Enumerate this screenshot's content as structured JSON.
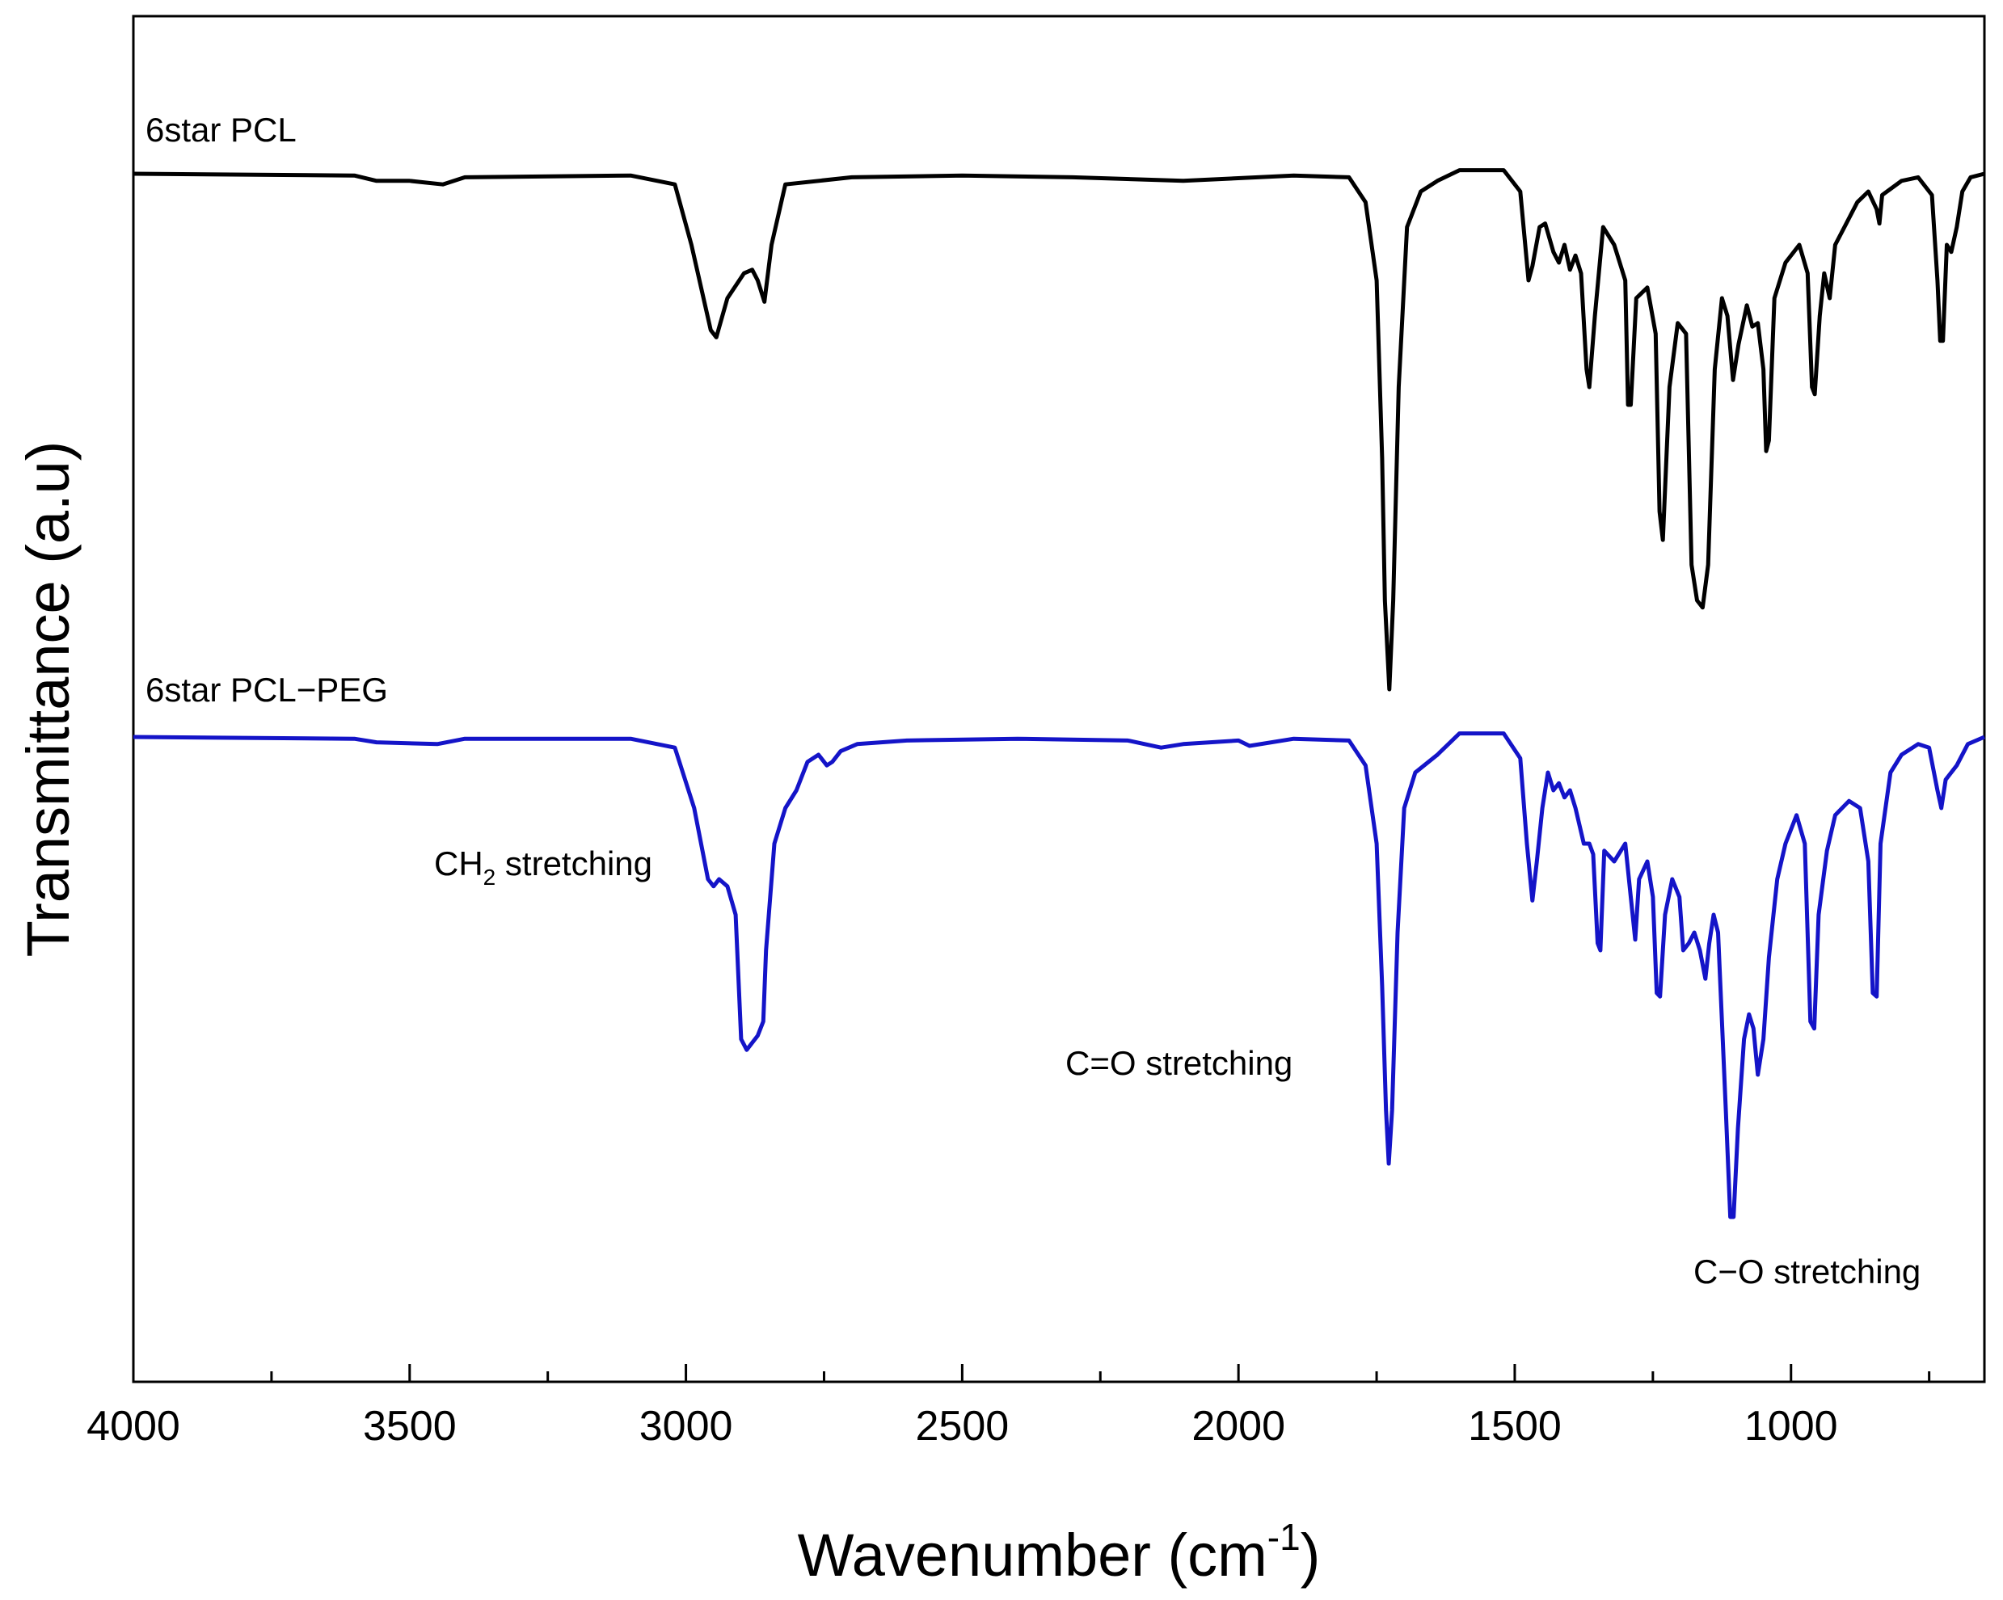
{
  "chart_data": {
    "type": "line",
    "xlabel": "Wavenumber (cm",
    "xlabel_sup": "-1",
    "xlabel_close": ")",
    "ylabel": "Transmittance (a.u)",
    "xlim": [
      4000,
      650
    ],
    "x_reversed": true,
    "x_ticks": [
      4000,
      3500,
      3000,
      2500,
      2000,
      1500,
      1000
    ],
    "y_tick_labels": "none",
    "grid": false,
    "colors": {
      "6star PCL": "#000000",
      "6star PCL-PEG": "#1414c8"
    },
    "series": [
      {
        "name": "6star PCL",
        "color": "#000000",
        "points": [
          [
            4000,
            0.0
          ],
          [
            3600,
            -0.005
          ],
          [
            3560,
            -0.02
          ],
          [
            3500,
            -0.02
          ],
          [
            3440,
            -0.03
          ],
          [
            3400,
            -0.01
          ],
          [
            3100,
            -0.005
          ],
          [
            3020,
            -0.03
          ],
          [
            2990,
            -0.2
          ],
          [
            2955,
            -0.44
          ],
          [
            2945,
            -0.46
          ],
          [
            2925,
            -0.35
          ],
          [
            2895,
            -0.28
          ],
          [
            2880,
            -0.27
          ],
          [
            2870,
            -0.3
          ],
          [
            2858,
            -0.36
          ],
          [
            2845,
            -0.2
          ],
          [
            2820,
            -0.03
          ],
          [
            2700,
            -0.01
          ],
          [
            2500,
            -0.005
          ],
          [
            2300,
            -0.01
          ],
          [
            2100,
            -0.02
          ],
          [
            1900,
            -0.005
          ],
          [
            1800,
            -0.01
          ],
          [
            1770,
            -0.08
          ],
          [
            1750,
            -0.3
          ],
          [
            1740,
            -0.8
          ],
          [
            1735,
            -1.2
          ],
          [
            1727,
            -1.45
          ],
          [
            1720,
            -1.2
          ],
          [
            1710,
            -0.6
          ],
          [
            1695,
            -0.15
          ],
          [
            1670,
            -0.05
          ],
          [
            1640,
            -0.02
          ],
          [
            1600,
            0.01
          ],
          [
            1520,
            0.01
          ],
          [
            1490,
            -0.05
          ],
          [
            1475,
            -0.3
          ],
          [
            1468,
            -0.26
          ],
          [
            1455,
            -0.15
          ],
          [
            1445,
            -0.14
          ],
          [
            1430,
            -0.22
          ],
          [
            1420,
            -0.25
          ],
          [
            1410,
            -0.2
          ],
          [
            1400,
            -0.27
          ],
          [
            1390,
            -0.23
          ],
          [
            1380,
            -0.28
          ],
          [
            1370,
            -0.55
          ],
          [
            1365,
            -0.6
          ],
          [
            1355,
            -0.4
          ],
          [
            1340,
            -0.15
          ],
          [
            1320,
            -0.2
          ],
          [
            1300,
            -0.3
          ],
          [
            1295,
            -0.65
          ],
          [
            1290,
            -0.65
          ],
          [
            1280,
            -0.35
          ],
          [
            1260,
            -0.32
          ],
          [
            1245,
            -0.45
          ],
          [
            1238,
            -0.95
          ],
          [
            1232,
            -1.03
          ],
          [
            1220,
            -0.6
          ],
          [
            1205,
            -0.42
          ],
          [
            1190,
            -0.45
          ],
          [
            1180,
            -1.1
          ],
          [
            1170,
            -1.2
          ],
          [
            1160,
            -1.22
          ],
          [
            1150,
            -1.1
          ],
          [
            1138,
            -0.55
          ],
          [
            1125,
            -0.35
          ],
          [
            1115,
            -0.4
          ],
          [
            1105,
            -0.58
          ],
          [
            1095,
            -0.48
          ],
          [
            1080,
            -0.37
          ],
          [
            1070,
            -0.43
          ],
          [
            1060,
            -0.42
          ],
          [
            1050,
            -0.55
          ],
          [
            1045,
            -0.78
          ],
          [
            1040,
            -0.75
          ],
          [
            1030,
            -0.35
          ],
          [
            1010,
            -0.25
          ],
          [
            985,
            -0.2
          ],
          [
            970,
            -0.28
          ],
          [
            962,
            -0.6
          ],
          [
            957,
            -0.62
          ],
          [
            948,
            -0.4
          ],
          [
            940,
            -0.28
          ],
          [
            930,
            -0.35
          ],
          [
            920,
            -0.2
          ],
          [
            880,
            -0.08
          ],
          [
            860,
            -0.05
          ],
          [
            845,
            -0.1
          ],
          [
            840,
            -0.14
          ],
          [
            835,
            -0.06
          ],
          [
            800,
            -0.02
          ],
          [
            770,
            -0.01
          ],
          [
            745,
            -0.06
          ],
          [
            735,
            -0.3
          ],
          [
            730,
            -0.47
          ],
          [
            725,
            -0.47
          ],
          [
            718,
            -0.2
          ],
          [
            710,
            -0.22
          ],
          [
            700,
            -0.15
          ],
          [
            690,
            -0.05
          ],
          [
            675,
            -0.01
          ],
          [
            650,
            0.0
          ]
        ]
      },
      {
        "name": "6star PCL-PEG",
        "color": "#1414c8",
        "points": [
          [
            4000,
            0.0
          ],
          [
            3600,
            -0.005
          ],
          [
            3560,
            -0.015
          ],
          [
            3450,
            -0.02
          ],
          [
            3400,
            -0.005
          ],
          [
            3100,
            -0.005
          ],
          [
            3020,
            -0.03
          ],
          [
            2985,
            -0.2
          ],
          [
            2960,
            -0.4
          ],
          [
            2950,
            -0.42
          ],
          [
            2940,
            -0.4
          ],
          [
            2925,
            -0.42
          ],
          [
            2910,
            -0.5
          ],
          [
            2900,
            -0.85
          ],
          [
            2890,
            -0.88
          ],
          [
            2880,
            -0.86
          ],
          [
            2870,
            -0.84
          ],
          [
            2860,
            -0.8
          ],
          [
            2855,
            -0.6
          ],
          [
            2840,
            -0.3
          ],
          [
            2820,
            -0.2
          ],
          [
            2800,
            -0.15
          ],
          [
            2780,
            -0.07
          ],
          [
            2760,
            -0.05
          ],
          [
            2745,
            -0.08
          ],
          [
            2735,
            -0.07
          ],
          [
            2720,
            -0.04
          ],
          [
            2690,
            -0.02
          ],
          [
            2600,
            -0.01
          ],
          [
            2400,
            -0.005
          ],
          [
            2200,
            -0.01
          ],
          [
            2140,
            -0.03
          ],
          [
            2100,
            -0.02
          ],
          [
            2000,
            -0.01
          ],
          [
            1980,
            -0.025
          ],
          [
            1900,
            -0.005
          ],
          [
            1800,
            -0.01
          ],
          [
            1770,
            -0.08
          ],
          [
            1750,
            -0.3
          ],
          [
            1740,
            -0.7
          ],
          [
            1733,
            -1.05
          ],
          [
            1728,
            -1.2
          ],
          [
            1722,
            -1.05
          ],
          [
            1712,
            -0.55
          ],
          [
            1700,
            -0.2
          ],
          [
            1680,
            -0.1
          ],
          [
            1640,
            -0.05
          ],
          [
            1600,
            0.01
          ],
          [
            1520,
            0.01
          ],
          [
            1490,
            -0.06
          ],
          [
            1478,
            -0.3
          ],
          [
            1468,
            -0.46
          ],
          [
            1460,
            -0.35
          ],
          [
            1450,
            -0.2
          ],
          [
            1440,
            -0.1
          ],
          [
            1430,
            -0.15
          ],
          [
            1420,
            -0.13
          ],
          [
            1410,
            -0.17
          ],
          [
            1400,
            -0.15
          ],
          [
            1390,
            -0.2
          ],
          [
            1375,
            -0.3
          ],
          [
            1365,
            -0.3
          ],
          [
            1358,
            -0.33
          ],
          [
            1350,
            -0.58
          ],
          [
            1345,
            -0.6
          ],
          [
            1338,
            -0.32
          ],
          [
            1320,
            -0.35
          ],
          [
            1300,
            -0.3
          ],
          [
            1290,
            -0.45
          ],
          [
            1282,
            -0.57
          ],
          [
            1275,
            -0.4
          ],
          [
            1260,
            -0.35
          ],
          [
            1250,
            -0.45
          ],
          [
            1243,
            -0.72
          ],
          [
            1237,
            -0.73
          ],
          [
            1228,
            -0.5
          ],
          [
            1215,
            -0.4
          ],
          [
            1202,
            -0.45
          ],
          [
            1195,
            -0.6
          ],
          [
            1185,
            -0.58
          ],
          [
            1175,
            -0.55
          ],
          [
            1165,
            -0.6
          ],
          [
            1155,
            -0.68
          ],
          [
            1148,
            -0.58
          ],
          [
            1140,
            -0.5
          ],
          [
            1132,
            -0.55
          ],
          [
            1125,
            -0.8
          ],
          [
            1118,
            -1.05
          ],
          [
            1110,
            -1.35
          ],
          [
            1104,
            -1.35
          ],
          [
            1096,
            -1.1
          ],
          [
            1085,
            -0.85
          ],
          [
            1076,
            -0.78
          ],
          [
            1068,
            -0.82
          ],
          [
            1060,
            -0.95
          ],
          [
            1050,
            -0.85
          ],
          [
            1040,
            -0.62
          ],
          [
            1025,
            -0.4
          ],
          [
            1010,
            -0.3
          ],
          [
            990,
            -0.22
          ],
          [
            975,
            -0.3
          ],
          [
            965,
            -0.8
          ],
          [
            958,
            -0.82
          ],
          [
            950,
            -0.5
          ],
          [
            935,
            -0.32
          ],
          [
            920,
            -0.22
          ],
          [
            895,
            -0.18
          ],
          [
            875,
            -0.2
          ],
          [
            860,
            -0.35
          ],
          [
            852,
            -0.72
          ],
          [
            845,
            -0.73
          ],
          [
            838,
            -0.3
          ],
          [
            820,
            -0.1
          ],
          [
            800,
            -0.05
          ],
          [
            770,
            -0.02
          ],
          [
            750,
            -0.03
          ],
          [
            735,
            -0.15
          ],
          [
            728,
            -0.2
          ],
          [
            720,
            -0.12
          ],
          [
            700,
            -0.08
          ],
          [
            680,
            -0.02
          ],
          [
            650,
            0.0
          ]
        ]
      }
    ],
    "series_labels": [
      {
        "text": "6star PCL"
      },
      {
        "text": "6star PCL−PEG"
      }
    ],
    "annotations": [
      {
        "text_main": "CH",
        "text_sub": "2",
        "text_rest": " stretching"
      },
      {
        "text_main": "C=O stretching"
      },
      {
        "text_main": "C−O stretching"
      }
    ]
  }
}
